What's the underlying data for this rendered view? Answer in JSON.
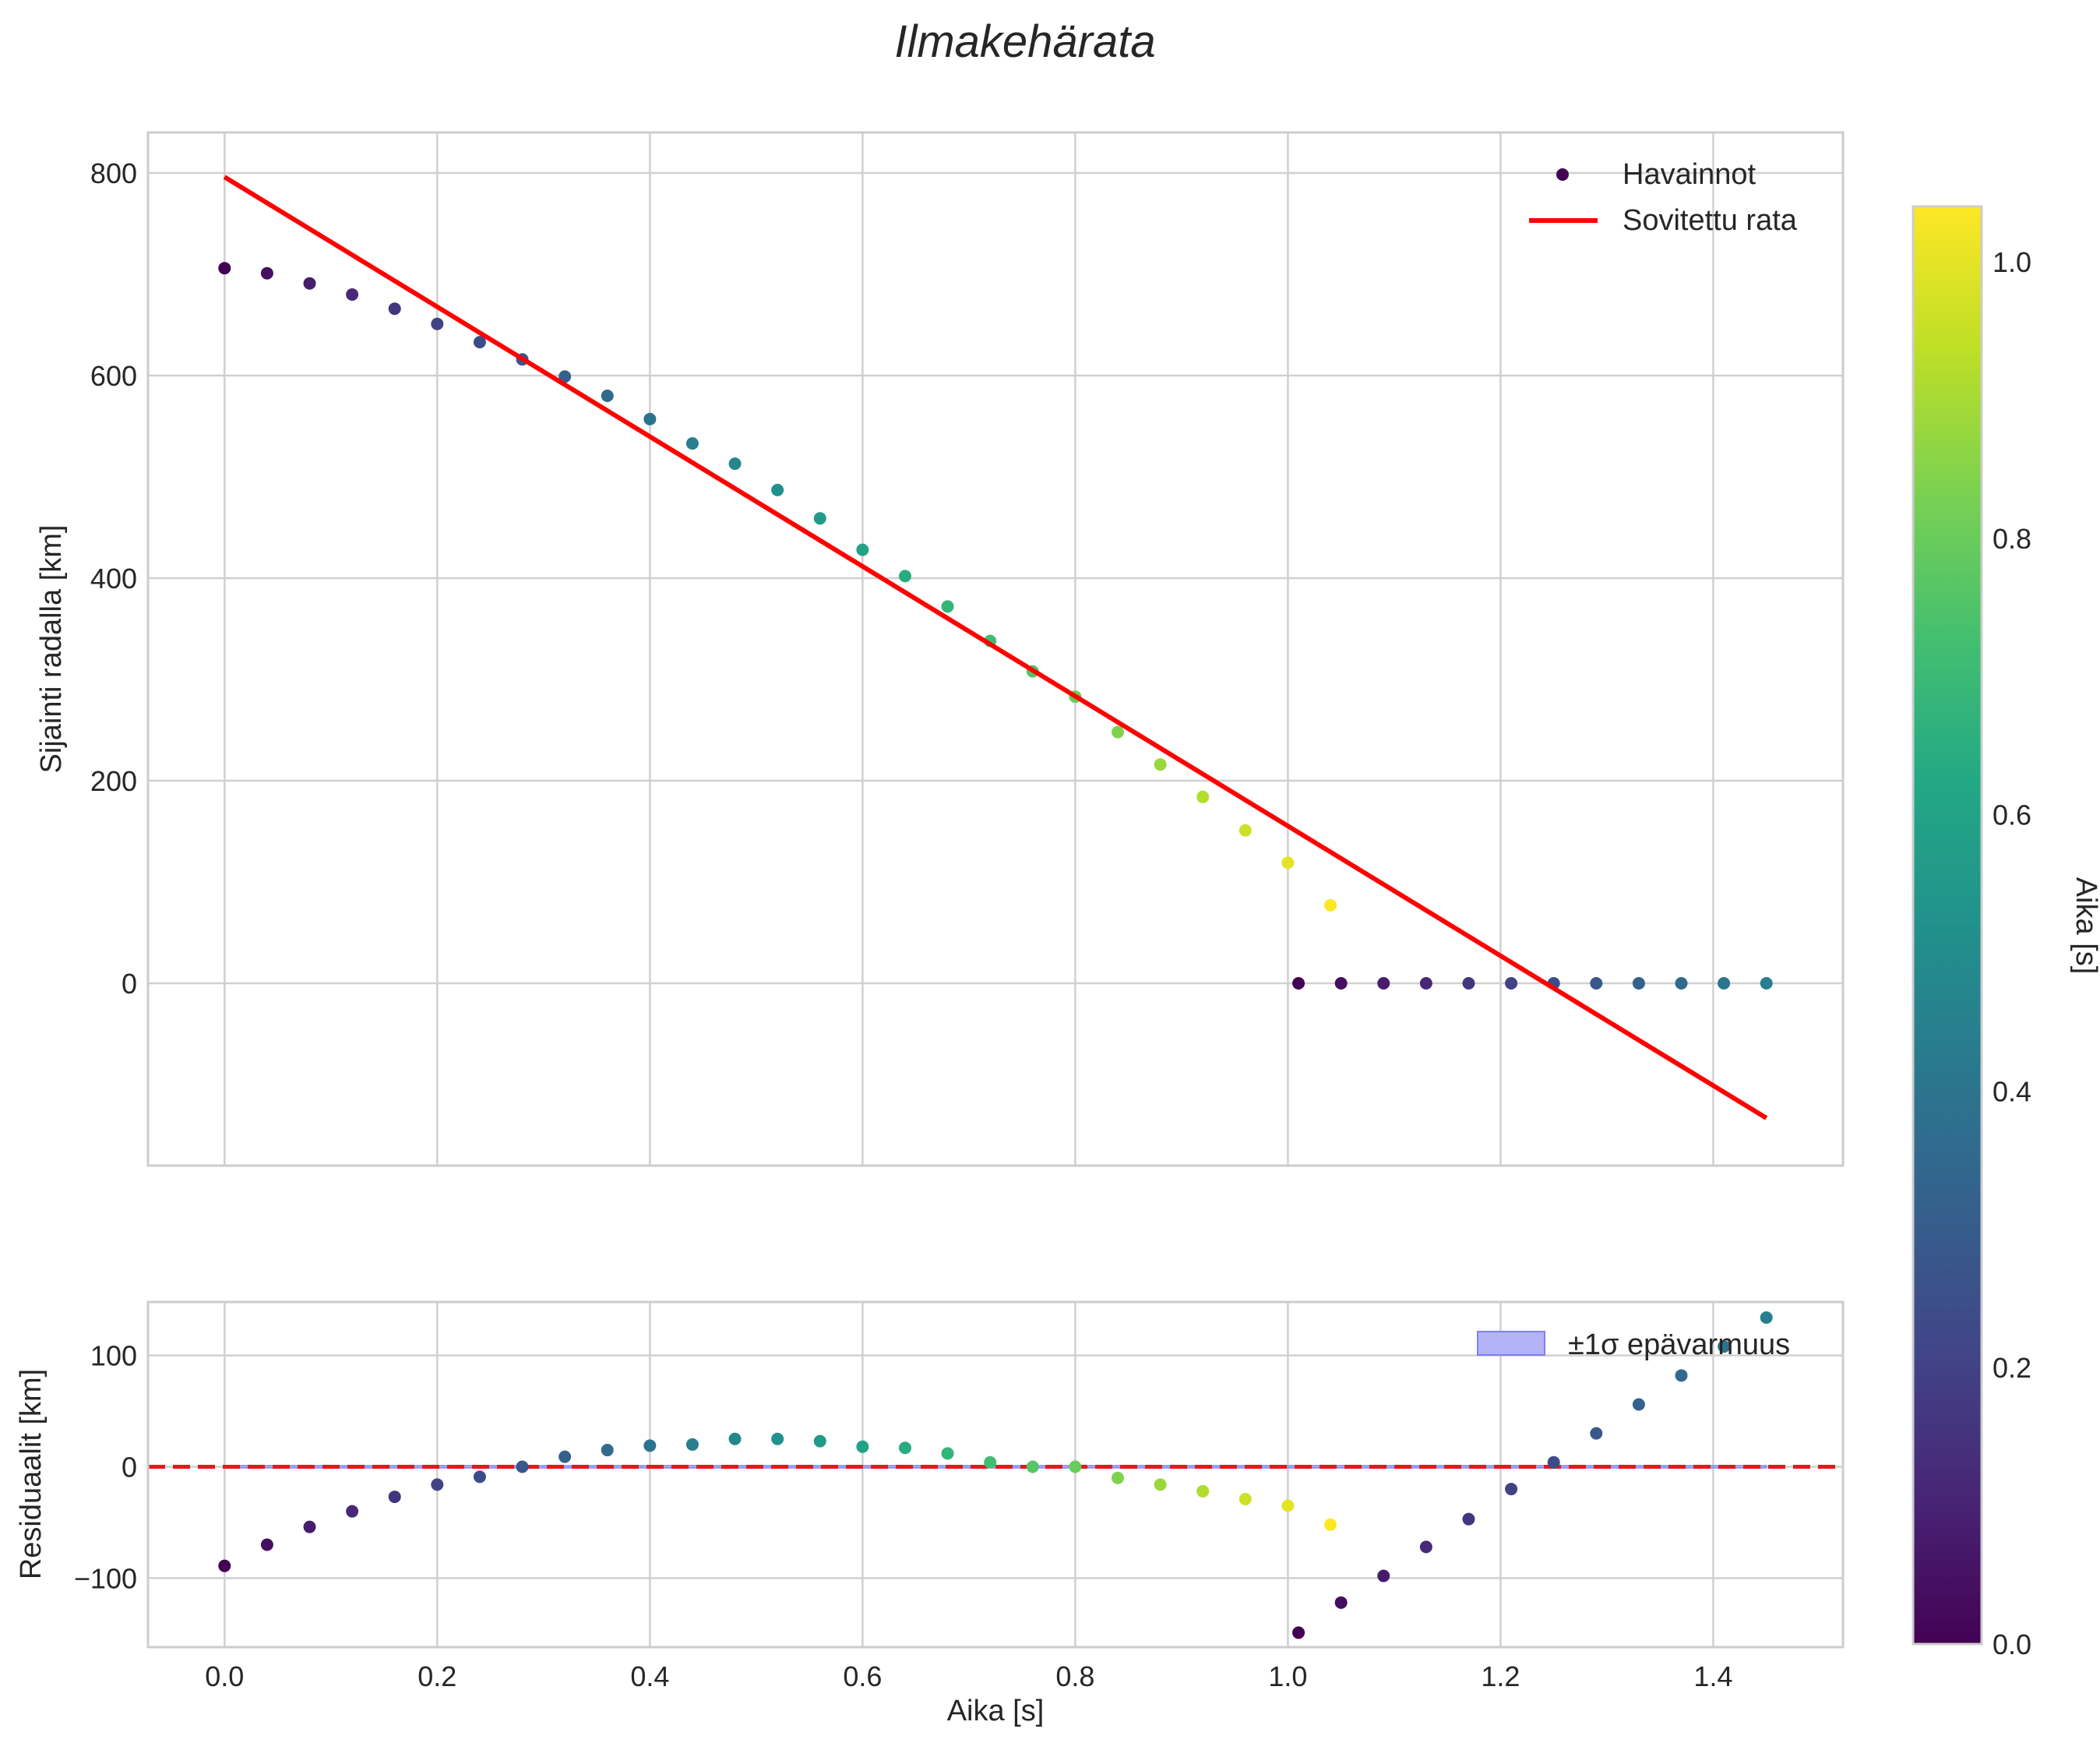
{
  "colors": {
    "fit_line": "#ff0000",
    "zero_line": "#e8161c",
    "band_fill": "#b3b3f8",
    "band_edge": "#7f7ff2",
    "grid": "#d0d0d0",
    "frame": "#cccccc",
    "text": "#262626"
  },
  "chart_data": [
    {
      "type": "scatter",
      "title": "Ilmakehärata",
      "xlabel": "",
      "ylabel": "Sijainti radalla [km]",
      "xlim": [
        -0.072,
        1.522
      ],
      "ylim": [
        -180,
        840
      ],
      "xticks": [
        0.0,
        0.2,
        0.4,
        0.6,
        0.8,
        1.0,
        1.2,
        1.4
      ],
      "xtick_labels": [
        "0.0",
        "0.2",
        "0.4",
        "0.6",
        "0.8",
        "1.0",
        "1.2",
        "1.4"
      ],
      "yticks": [
        0,
        200,
        400,
        600,
        800
      ],
      "ytick_labels": [
        "0",
        "200",
        "400",
        "600",
        "800"
      ],
      "grid": true,
      "legend": {
        "placement": "top-right",
        "entries": [
          "Havainnot",
          "Sovitettu rata"
        ]
      },
      "series": [
        {
          "name": "Havainnot",
          "kind": "scatter",
          "x": [
            0.0,
            0.04,
            0.08,
            0.12,
            0.16,
            0.2,
            0.24,
            0.28,
            0.32,
            0.36,
            0.4,
            0.44,
            0.48,
            0.52,
            0.56,
            0.6,
            0.64,
            0.68,
            0.72,
            0.76,
            0.8,
            0.84,
            0.88,
            0.92,
            0.96,
            1.0,
            1.04,
            1.01,
            1.05,
            1.09,
            1.13,
            1.17,
            1.21,
            1.25,
            1.29,
            1.33,
            1.37,
            1.41,
            1.45
          ],
          "y": [
            706,
            701,
            691,
            680,
            666,
            651,
            633,
            616,
            599,
            580,
            557,
            533,
            513,
            487,
            459,
            428,
            402,
            372,
            338,
            308,
            283,
            248,
            216,
            184,
            151,
            119,
            77,
            0,
            0,
            0,
            0,
            0,
            0,
            0,
            0,
            0,
            0,
            0,
            0
          ],
          "c": [
            0.0,
            0.04,
            0.08,
            0.12,
            0.16,
            0.2,
            0.24,
            0.28,
            0.32,
            0.36,
            0.4,
            0.44,
            0.48,
            0.52,
            0.56,
            0.6,
            0.64,
            0.68,
            0.72,
            0.76,
            0.8,
            0.84,
            0.88,
            0.92,
            0.96,
            1.0,
            1.04,
            0.0,
            0.04,
            0.08,
            0.12,
            0.16,
            0.2,
            0.24,
            0.28,
            0.32,
            0.36,
            0.4,
            0.44
          ]
        },
        {
          "name": "Sovitettu rata",
          "kind": "line",
          "x": [
            0.0,
            1.45
          ],
          "y": [
            796,
            -133
          ]
        }
      ]
    },
    {
      "type": "scatter",
      "title": "",
      "xlabel": "Aika [s]",
      "ylabel": "Residuaalit [km]",
      "xlim": [
        -0.072,
        1.522
      ],
      "ylim": [
        -162,
        148
      ],
      "xticks": [
        0.0,
        0.2,
        0.4,
        0.6,
        0.8,
        1.0,
        1.2,
        1.4
      ],
      "xtick_labels": [
        "0.0",
        "0.2",
        "0.4",
        "0.6",
        "0.8",
        "1.0",
        "1.2",
        "1.4"
      ],
      "yticks": [
        -100,
        0,
        100
      ],
      "ytick_labels": [
        "−100",
        "0",
        "100"
      ],
      "grid": true,
      "legend": {
        "placement": "top-right",
        "entries": [
          "±1σ epävarmuus"
        ]
      },
      "reference_line": {
        "y": 0,
        "style": "dashed"
      },
      "band": {
        "name": "±1σ epävarmuus",
        "lower": -1,
        "upper": 1
      },
      "series": [
        {
          "name": "Residuaalit",
          "kind": "scatter",
          "x": [
            0.0,
            0.04,
            0.08,
            0.12,
            0.16,
            0.2,
            0.24,
            0.28,
            0.32,
            0.36,
            0.4,
            0.44,
            0.48,
            0.52,
            0.56,
            0.6,
            0.64,
            0.68,
            0.72,
            0.76,
            0.8,
            0.84,
            0.88,
            0.92,
            0.96,
            1.0,
            1.04,
            1.01,
            1.05,
            1.09,
            1.13,
            1.17,
            1.21,
            1.25,
            1.29,
            1.33,
            1.37,
            1.41,
            1.45
          ],
          "y": [
            -89,
            -70,
            -54,
            -40,
            -27,
            -16,
            -9,
            0,
            9,
            15,
            19,
            20,
            25,
            25,
            23,
            18,
            17,
            12,
            4,
            0,
            0,
            -10,
            -16,
            -22,
            -29,
            -35,
            -52,
            -149,
            -122,
            -98,
            -72,
            -47,
            -20,
            4,
            30,
            56,
            82,
            108,
            134
          ],
          "c": [
            0.0,
            0.04,
            0.08,
            0.12,
            0.16,
            0.2,
            0.24,
            0.28,
            0.32,
            0.36,
            0.4,
            0.44,
            0.48,
            0.52,
            0.56,
            0.6,
            0.64,
            0.68,
            0.72,
            0.76,
            0.8,
            0.84,
            0.88,
            0.92,
            0.96,
            1.0,
            1.04,
            0.0,
            0.04,
            0.08,
            0.12,
            0.16,
            0.2,
            0.24,
            0.28,
            0.32,
            0.36,
            0.4,
            0.44
          ]
        }
      ]
    }
  ],
  "colorbar": {
    "label": "Aika [s]",
    "colormap": "viridis",
    "range": [
      0.0,
      1.04
    ],
    "ticks": [
      0.0,
      0.2,
      0.4,
      0.6,
      0.8,
      1.0
    ],
    "tick_labels": [
      "0.0",
      "0.2",
      "0.4",
      "0.6",
      "0.8",
      "1.0"
    ]
  }
}
